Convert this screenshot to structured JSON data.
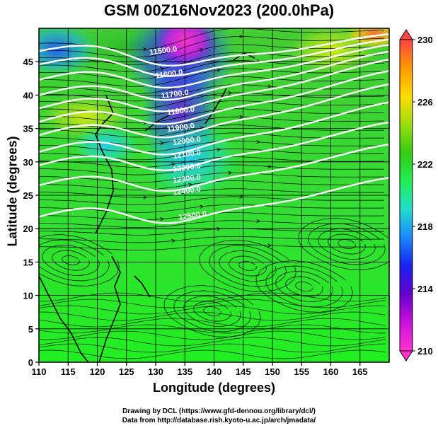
{
  "title": "GSM 00Z16Nov2023 (200.0hPa)",
  "xlabel": "Longitude (degrees)",
  "ylabel": "Latitude  (degrees)",
  "credit_line1": "Drawing by DCL (https://www.gfd-dennou.org/library/dcl/)",
  "credit_line2": "Data from http://database.rish.kyoto-u.ac.jp/arch/jmadata/",
  "chart_data": {
    "type": "heatmap",
    "xlim": [
      110,
      170
    ],
    "ylim": [
      0,
      50
    ],
    "xticks": [
      110,
      115,
      120,
      125,
      130,
      135,
      140,
      145,
      150,
      155,
      160,
      165
    ],
    "yticks": [
      0,
      5,
      10,
      15,
      20,
      25,
      30,
      35,
      40,
      45
    ],
    "grid": true,
    "colorbar": {
      "min": 210,
      "max": 230,
      "ticks": [
        210,
        214,
        218,
        222,
        226,
        230
      ],
      "colors": [
        "#ff33cc",
        "#cc11dd",
        "#6600cc",
        "#1a22ee",
        "#1a88ff",
        "#22ddcc",
        "#22ee55",
        "#33cc11",
        "#99dd11",
        "#ffdd00",
        "#ff9900",
        "#ff4444"
      ]
    },
    "contours": [
      {
        "label": "11500.0",
        "lat_west": 46.6,
        "lat_east": 48.0,
        "label_lon": 129,
        "label_lat": 46.0
      },
      {
        "label": "11600.0",
        "lat_west": 44.6,
        "lat_east": 47.2,
        "label_lon": 130,
        "label_lat": 42.5
      },
      {
        "label": "11700.0",
        "lat_west": 42.3,
        "lat_east": 46.4,
        "label_lon": 131,
        "label_lat": 39.5
      },
      {
        "label": "11800.0",
        "lat_west": 40.0,
        "lat_east": 45.4,
        "label_lon": 132,
        "label_lat": 37.0
      },
      {
        "label": "11900.0",
        "lat_west": 38.0,
        "lat_east": 44.2,
        "label_lon": 132,
        "label_lat": 34.5
      },
      {
        "label": "12000.0",
        "lat_west": 36.0,
        "lat_east": 42.5,
        "label_lon": 133,
        "label_lat": 32.5
      },
      {
        "label": "12100.0",
        "lat_west": 34.0,
        "lat_east": 40.5,
        "label_lon": 133,
        "label_lat": 30.5
      },
      {
        "label": "12200.0",
        "lat_west": 31.5,
        "lat_east": 37.8,
        "label_lon": 133,
        "label_lat": 28.5
      },
      {
        "label": "12300.0",
        "lat_west": 29.5,
        "lat_east": 34.8,
        "label_lon": 133,
        "label_lat": 26.8
      },
      {
        "label": "12400.0",
        "lat_west": 26.5,
        "lat_east": 31.5,
        "label_lon": 133,
        "label_lat": 25.0
      },
      {
        "label": "12500.0",
        "lat_west": 21.8,
        "lat_east": 26.5,
        "label_lon": 134,
        "label_lat": 21.3
      }
    ]
  }
}
